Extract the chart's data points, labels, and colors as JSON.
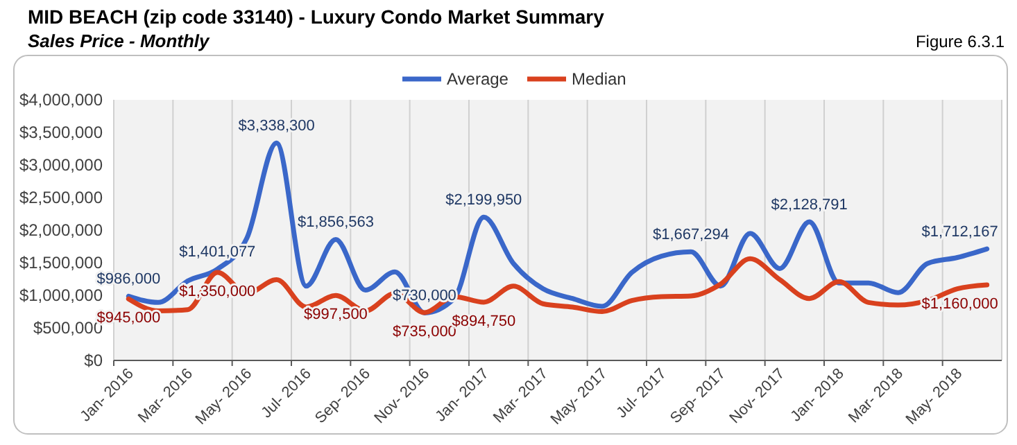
{
  "chart_data": {
    "type": "line",
    "title": "MID BEACH (zip code 33140) - Luxury Condo Market Summary",
    "subtitle": "Sales Price - Monthly",
    "annotations": [
      "Figure 6.3.1"
    ],
    "categories": [
      "Jan- 2016",
      null,
      "Mar- 2016",
      null,
      "May- 2016",
      null,
      "Jul- 2016",
      null,
      "Sep- 2016",
      null,
      "Nov- 2016",
      null,
      "Jan- 2017",
      null,
      "Mar- 2017",
      null,
      "May- 2017",
      null,
      "Jul- 2017",
      null,
      "Sep- 2017",
      null,
      "Nov- 2017",
      null,
      "Jan- 2018",
      null,
      "Mar- 2018",
      null,
      "May- 2018",
      null
    ],
    "series": [
      {
        "name": "Average",
        "color": "#3a67c9",
        "values": [
          986000,
          890000,
          1220000,
          1401077,
          1880000,
          3338300,
          1140000,
          1856563,
          1080000,
          1360000,
          730000,
          950000,
          2199950,
          1490000,
          1100000,
          950000,
          830000,
          1350000,
          1600000,
          1667294,
          1140000,
          1950000,
          1410000,
          2128791,
          1190000,
          1190000,
          1040000,
          1490000,
          1580000,
          1712167
        ],
        "value_labels": [
          "$986,000",
          null,
          null,
          "$1,401,077",
          null,
          "$3,338,300",
          null,
          "$1,856,563",
          null,
          null,
          "$730,000",
          null,
          "$2,199,950",
          null,
          null,
          null,
          null,
          null,
          null,
          "$1,667,294",
          null,
          null,
          null,
          "$2,128,791",
          null,
          null,
          null,
          null,
          null,
          "$1,712,167"
        ]
      },
      {
        "name": "Median",
        "color": "#d9411e",
        "values": [
          945000,
          760000,
          780000,
          1350000,
          1030000,
          1240000,
          820000,
          997500,
          760000,
          1030000,
          735000,
          980000,
          894750,
          1140000,
          870000,
          820000,
          750000,
          920000,
          980000,
          990000,
          1170000,
          1560000,
          1240000,
          950000,
          1210000,
          890000,
          850000,
          920000,
          1100000,
          1160000
        ],
        "value_labels": [
          "$945,000",
          null,
          null,
          "$1,350,000",
          null,
          null,
          null,
          "$997,500",
          null,
          null,
          "$735,000",
          null,
          "$894,750",
          null,
          null,
          null,
          null,
          null,
          null,
          null,
          null,
          null,
          null,
          null,
          null,
          null,
          null,
          null,
          null,
          "$1,160,000"
        ]
      }
    ],
    "ylim": [
      0,
      4000000
    ],
    "yticks": [
      {
        "value": 0,
        "label": "$0"
      },
      {
        "value": 500000,
        "label": "$500,000"
      },
      {
        "value": 1000000,
        "label": "$1,000,000"
      },
      {
        "value": 1500000,
        "label": "$1,500,000"
      },
      {
        "value": 2000000,
        "label": "$2,000,000"
      },
      {
        "value": 2500000,
        "label": "$2,500,000"
      },
      {
        "value": 3000000,
        "label": "$3,000,000"
      },
      {
        "value": 3500000,
        "label": "$3,500,000"
      },
      {
        "value": 4000000,
        "label": "$4,000,000"
      }
    ],
    "grid": "x",
    "legend": "top",
    "marker": "none",
    "line_style": "solid"
  }
}
